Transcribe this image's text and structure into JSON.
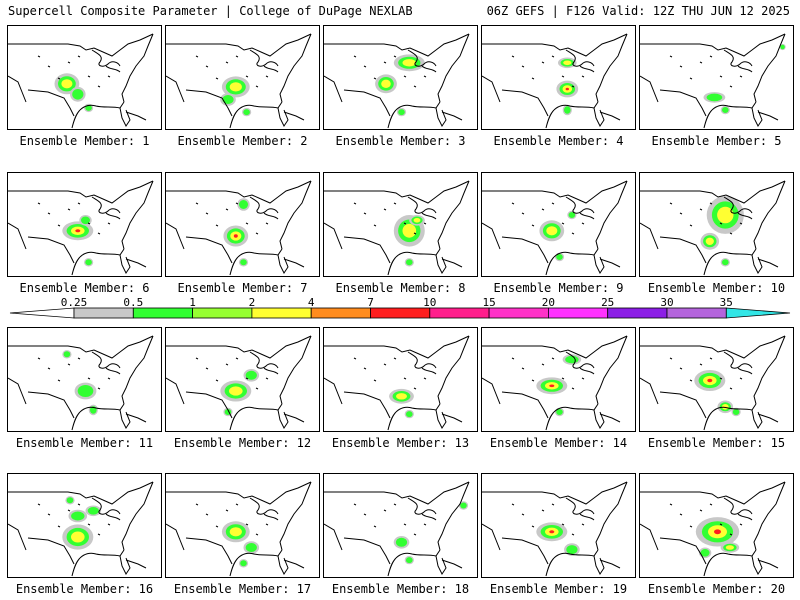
{
  "header": {
    "left_title": "Supercell Composite Parameter | College of DuPage NEXLAB",
    "right_title": "06Z GEFS | F126 Valid: 12Z THU JUN 12 2025"
  },
  "colorbar": {
    "ticks": [
      "0.25",
      "0.5",
      "1",
      "2",
      "4",
      "7",
      "10",
      "15",
      "20",
      "25",
      "30",
      "35"
    ],
    "colors": [
      "#c8c8c8",
      "#32ff32",
      "#96ff32",
      "#ffff32",
      "#ff8c1e",
      "#ff1e1e",
      "#ff1e8c",
      "#ff32c8",
      "#ff32ff",
      "#8c1ee6",
      "#b464dc",
      "#32e6e6"
    ]
  },
  "members": [
    {
      "label": "Ensemble Member: 1",
      "blobs": [
        [
          0.38,
          0.55,
          0.08,
          0.1,
          2
        ],
        [
          0.45,
          0.65,
          0.05,
          0.07,
          1
        ],
        [
          0.52,
          0.78,
          0.03,
          0.04,
          1
        ]
      ]
    },
    {
      "label": "Ensemble Member: 2",
      "blobs": [
        [
          0.45,
          0.58,
          0.09,
          0.1,
          2
        ],
        [
          0.4,
          0.7,
          0.05,
          0.06,
          1
        ],
        [
          0.52,
          0.82,
          0.03,
          0.04,
          1
        ]
      ]
    },
    {
      "label": "Ensemble Member: 3",
      "blobs": [
        [
          0.55,
          0.35,
          0.1,
          0.08,
          2
        ],
        [
          0.4,
          0.55,
          0.07,
          0.09,
          2
        ],
        [
          0.5,
          0.82,
          0.03,
          0.04,
          1
        ]
      ]
    },
    {
      "label": "Ensemble Member: 4",
      "blobs": [
        [
          0.55,
          0.6,
          0.07,
          0.08,
          3
        ],
        [
          0.55,
          0.35,
          0.06,
          0.05,
          2
        ],
        [
          0.55,
          0.8,
          0.03,
          0.05,
          1
        ]
      ]
    },
    {
      "label": "Ensemble Member: 5",
      "blobs": [
        [
          0.48,
          0.68,
          0.07,
          0.05,
          1
        ],
        [
          0.55,
          0.8,
          0.03,
          0.04,
          1
        ],
        [
          0.92,
          0.2,
          0.02,
          0.03,
          1
        ]
      ]
    },
    {
      "label": "Ensemble Member: 6",
      "blobs": [
        [
          0.45,
          0.55,
          0.1,
          0.09,
          3
        ],
        [
          0.5,
          0.45,
          0.04,
          0.05,
          1
        ],
        [
          0.52,
          0.85,
          0.03,
          0.04,
          1
        ]
      ]
    },
    {
      "label": "Ensemble Member: 7",
      "blobs": [
        [
          0.45,
          0.6,
          0.08,
          0.1,
          3
        ],
        [
          0.5,
          0.3,
          0.04,
          0.06,
          1
        ],
        [
          0.5,
          0.85,
          0.03,
          0.04,
          1
        ]
      ]
    },
    {
      "label": "Ensemble Member: 8",
      "blobs": [
        [
          0.55,
          0.55,
          0.1,
          0.15,
          2
        ],
        [
          0.6,
          0.45,
          0.05,
          0.05,
          2
        ],
        [
          0.55,
          0.85,
          0.03,
          0.04,
          1
        ]
      ]
    },
    {
      "label": "Ensemble Member: 9",
      "blobs": [
        [
          0.45,
          0.55,
          0.08,
          0.1,
          2
        ],
        [
          0.5,
          0.8,
          0.03,
          0.04,
          1
        ],
        [
          0.58,
          0.4,
          0.03,
          0.04,
          1
        ]
      ]
    },
    {
      "label": "Ensemble Member: 10",
      "blobs": [
        [
          0.55,
          0.4,
          0.12,
          0.18,
          2
        ],
        [
          0.45,
          0.65,
          0.06,
          0.08,
          2
        ],
        [
          0.55,
          0.85,
          0.03,
          0.04,
          1
        ]
      ]
    },
    {
      "label": "Ensemble Member: 11",
      "blobs": [
        [
          0.5,
          0.6,
          0.07,
          0.08,
          1
        ],
        [
          0.55,
          0.78,
          0.03,
          0.05,
          1
        ],
        [
          0.38,
          0.25,
          0.03,
          0.04,
          1
        ]
      ]
    },
    {
      "label": "Ensemble Member: 12",
      "blobs": [
        [
          0.45,
          0.6,
          0.1,
          0.1,
          2
        ],
        [
          0.55,
          0.45,
          0.05,
          0.06,
          1
        ],
        [
          0.4,
          0.8,
          0.03,
          0.04,
          1
        ]
      ]
    },
    {
      "label": "Ensemble Member: 13",
      "blobs": [
        [
          0.5,
          0.65,
          0.08,
          0.07,
          2
        ],
        [
          0.55,
          0.82,
          0.03,
          0.04,
          1
        ]
      ]
    },
    {
      "label": "Ensemble Member: 14",
      "blobs": [
        [
          0.45,
          0.55,
          0.1,
          0.08,
          3
        ],
        [
          0.58,
          0.3,
          0.06,
          0.05,
          1
        ],
        [
          0.5,
          0.8,
          0.03,
          0.04,
          1
        ]
      ]
    },
    {
      "label": "Ensemble Member: 15",
      "blobs": [
        [
          0.45,
          0.5,
          0.1,
          0.1,
          3
        ],
        [
          0.55,
          0.75,
          0.05,
          0.06,
          2
        ],
        [
          0.62,
          0.8,
          0.03,
          0.04,
          1
        ]
      ]
    },
    {
      "label": "Ensemble Member: 16",
      "blobs": [
        [
          0.45,
          0.6,
          0.1,
          0.12,
          2
        ],
        [
          0.45,
          0.4,
          0.06,
          0.06,
          1
        ],
        [
          0.55,
          0.35,
          0.05,
          0.05,
          1
        ],
        [
          0.4,
          0.25,
          0.03,
          0.04,
          1
        ]
      ]
    },
    {
      "label": "Ensemble Member: 17",
      "blobs": [
        [
          0.45,
          0.55,
          0.09,
          0.1,
          2
        ],
        [
          0.55,
          0.7,
          0.05,
          0.06,
          1
        ],
        [
          0.5,
          0.85,
          0.03,
          0.04,
          1
        ]
      ]
    },
    {
      "label": "Ensemble Member: 18",
      "blobs": [
        [
          0.5,
          0.65,
          0.05,
          0.06,
          1
        ],
        [
          0.9,
          0.3,
          0.03,
          0.04,
          1
        ],
        [
          0.55,
          0.82,
          0.03,
          0.04,
          1
        ]
      ]
    },
    {
      "label": "Ensemble Member: 19",
      "blobs": [
        [
          0.45,
          0.55,
          0.1,
          0.09,
          3
        ],
        [
          0.58,
          0.72,
          0.05,
          0.06,
          1
        ]
      ]
    },
    {
      "label": "Ensemble Member: 20",
      "blobs": [
        [
          0.5,
          0.55,
          0.14,
          0.14,
          3
        ],
        [
          0.58,
          0.7,
          0.06,
          0.05,
          2
        ],
        [
          0.42,
          0.75,
          0.04,
          0.05,
          1
        ]
      ]
    }
  ]
}
